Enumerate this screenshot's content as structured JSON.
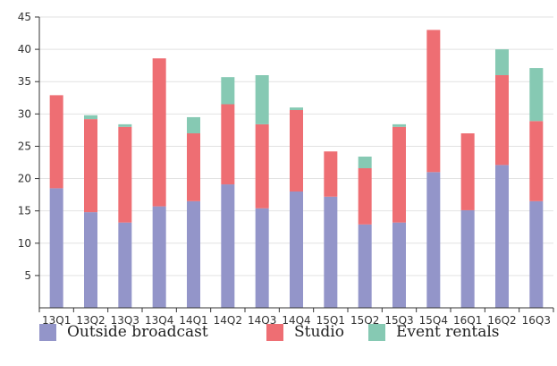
{
  "chart_data": {
    "type": "bar",
    "stacked": true,
    "title": "",
    "xlabel": "",
    "ylabel": "",
    "ylim": [
      0,
      45
    ],
    "yticks": [
      5,
      10,
      15,
      20,
      25,
      30,
      35,
      40,
      45
    ],
    "grid": true,
    "legend_position": "bottom",
    "categories": [
      "13Q1",
      "13Q2",
      "13Q3",
      "13Q4",
      "14Q1",
      "14Q2",
      "14Q3",
      "14Q4",
      "15Q1",
      "15Q2",
      "15Q3",
      "15Q4",
      "16Q1",
      "16Q2",
      "16Q3"
    ],
    "series": [
      {
        "name": "Outside broadcast",
        "color": "#9395c9",
        "values": [
          18.5,
          14.8,
          13.2,
          15.7,
          16.5,
          19.1,
          15.4,
          18.0,
          17.2,
          12.9,
          13.2,
          21.0,
          15.1,
          22.1,
          16.5
        ]
      },
      {
        "name": "Studio",
        "color": "#ee6e73",
        "values": [
          14.4,
          14.4,
          14.8,
          22.9,
          10.5,
          12.4,
          13.0,
          12.6,
          7.0,
          8.7,
          14.8,
          22.0,
          11.9,
          13.9,
          12.4
        ]
      },
      {
        "name": "Event rentals",
        "color": "#86c9b3",
        "values": [
          0,
          0.6,
          0.4,
          0,
          2.5,
          4.2,
          7.6,
          0.4,
          0,
          1.8,
          0.4,
          0,
          0,
          4.0,
          8.2
        ]
      }
    ]
  },
  "colors": {
    "axis": "#333333",
    "grid": "#e2e2e2"
  }
}
